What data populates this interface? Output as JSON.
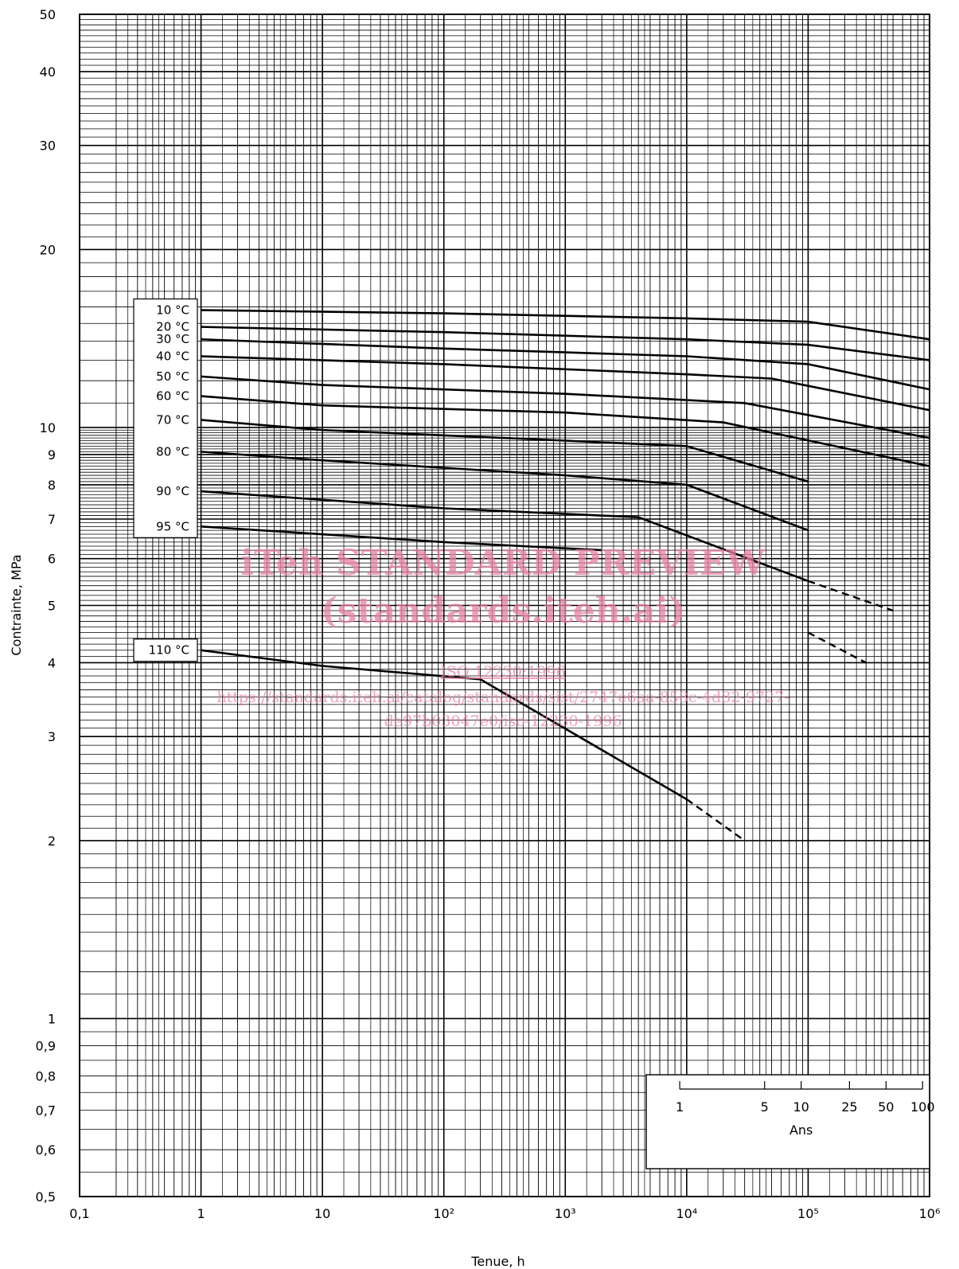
{
  "chart_data": {
    "type": "line",
    "xlabel": "Tenue, h",
    "ylabel": "Contrainte, MPa",
    "xscale": "log",
    "yscale": "log",
    "xlim": [
      0.1,
      1000000
    ],
    "ylim": [
      0.5,
      50
    ],
    "x_tick_labels": [
      "0,1",
      "1",
      "10",
      "10²",
      "10³",
      "10⁴",
      "10⁵",
      "10⁶"
    ],
    "x_ticks": [
      0.1,
      1,
      10,
      100,
      1000,
      10000,
      100000,
      1000000
    ],
    "y_tick_labels": [
      "50",
      "40",
      "30",
      "20",
      "10",
      "9",
      "8",
      "7",
      "6",
      "5",
      "4",
      "3",
      "2",
      "1",
      "0,9",
      "0,8",
      "0,7",
      "0,6",
      "0,5"
    ],
    "y_ticks": [
      50,
      40,
      30,
      20,
      10,
      9,
      8,
      7,
      6,
      5,
      4,
      3,
      2,
      1,
      0.9,
      0.8,
      0.7,
      0.6,
      0.5
    ],
    "grid": true,
    "series": [
      {
        "name": "10 °C",
        "points": [
          [
            1,
            15.8
          ],
          [
            100,
            15.6
          ],
          [
            10000,
            15.3
          ],
          [
            100000,
            15.1
          ],
          [
            1000000,
            14.1
          ]
        ],
        "dashed_from": null
      },
      {
        "name": "20 °C",
        "points": [
          [
            1,
            14.8
          ],
          [
            100,
            14.5
          ],
          [
            10000,
            14.1
          ],
          [
            100000,
            13.8
          ],
          [
            1000000,
            13.0
          ]
        ],
        "dashed_from": null
      },
      {
        "name": "30 °C",
        "points": [
          [
            1,
            14.1
          ],
          [
            100,
            13.6
          ],
          [
            1000,
            13.4
          ],
          [
            10000,
            13.2
          ],
          [
            100000,
            12.8
          ],
          [
            1000000,
            11.6
          ]
        ],
        "dashed_from": null
      },
      {
        "name": "40 °C",
        "points": [
          [
            1,
            13.2
          ],
          [
            100,
            12.8
          ],
          [
            10000,
            12.3
          ],
          [
            50000,
            12.1
          ],
          [
            1000000,
            10.7
          ]
        ],
        "dashed_from": null
      },
      {
        "name": "50 °C",
        "points": [
          [
            1,
            12.2
          ],
          [
            10,
            11.8
          ],
          [
            1000,
            11.4
          ],
          [
            30000,
            11.0
          ],
          [
            1000000,
            9.6
          ]
        ],
        "dashed_from": null
      },
      {
        "name": "60 °C",
        "points": [
          [
            1,
            11.3
          ],
          [
            10,
            10.9
          ],
          [
            1000,
            10.6
          ],
          [
            20000,
            10.2
          ],
          [
            1000000,
            8.6
          ]
        ],
        "dashed_from": null
      },
      {
        "name": "70 °C",
        "points": [
          [
            1,
            10.3
          ],
          [
            10,
            9.9
          ],
          [
            1000,
            9.5
          ],
          [
            10000,
            9.3
          ],
          [
            100000,
            8.1
          ],
          [
            1000000,
            7.0
          ]
        ],
        "dashed_from": 300000
      },
      {
        "name": "80 °C",
        "points": [
          [
            1,
            9.1
          ],
          [
            10,
            8.8
          ],
          [
            1000,
            8.3
          ],
          [
            10000,
            8.0
          ],
          [
            100000,
            6.7
          ],
          [
            1000000,
            5.8
          ]
        ],
        "dashed_from": 300000
      },
      {
        "name": "90 °C",
        "points": [
          [
            1,
            7.8
          ],
          [
            100,
            7.3
          ],
          [
            4000,
            7.05
          ],
          [
            100000,
            5.5
          ],
          [
            500000,
            4.9
          ]
        ],
        "dashed_from": 100000
      },
      {
        "name": "95 °C",
        "points": [
          [
            1,
            6.8
          ],
          [
            100,
            6.4
          ],
          [
            2000,
            6.2
          ],
          [
            100000,
            4.5
          ],
          [
            300000,
            4.0
          ]
        ],
        "dashed_from": 80000
      },
      {
        "name": "110 °C",
        "points": [
          [
            1,
            4.2
          ],
          [
            10,
            3.95
          ],
          [
            200,
            3.75
          ],
          [
            10000,
            2.35
          ],
          [
            30000,
            2.0
          ]
        ],
        "dashed_from": 10000
      }
    ],
    "years_scale": {
      "label": "Ans",
      "ticks": [
        {
          "label": "1",
          "hours": 8760
        },
        {
          "label": "5",
          "hours": 43800
        },
        {
          "label": "10",
          "hours": 87600
        },
        {
          "label": "25",
          "hours": 219000
        },
        {
          "label": "50",
          "hours": 438000
        },
        {
          "label": "100",
          "hours": 876000
        }
      ]
    }
  },
  "watermark": {
    "line1": "iTeh STANDARD PREVIEW",
    "line2": "(standards.iteh.ai)",
    "line3": "ISO 12230:1996",
    "line4": "https://standards.iteh.ai/catalog/standards/sist/2747e6aa-858c-4d82-9727-",
    "line5": "de97b03047e0/iso-12230-1996"
  }
}
